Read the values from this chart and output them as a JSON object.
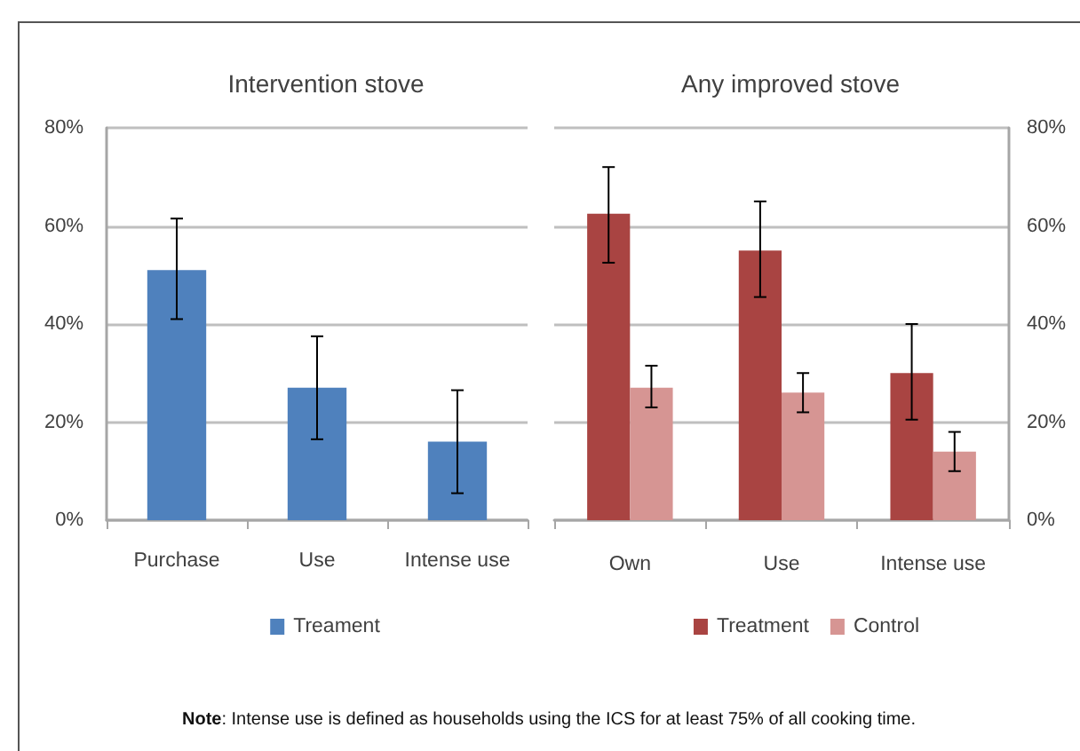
{
  "chart_data": [
    {
      "type": "bar",
      "title": "Intervention stove",
      "categories": [
        "Purchase",
        "Use",
        "Intense use"
      ],
      "series": [
        {
          "name": "Treament",
          "color": "#4f81bd",
          "values": [
            51,
            27,
            16
          ],
          "errors": [
            [
              41,
              61.5
            ],
            [
              16.5,
              37.5
            ],
            [
              5.5,
              26.5
            ]
          ]
        }
      ],
      "ylim": [
        0,
        80
      ],
      "yticks": [
        {
          "value": 0,
          "label": "0%"
        },
        {
          "value": 20,
          "label": "20%"
        },
        {
          "value": 40,
          "label": "40%"
        },
        {
          "value": 60,
          "label": "60%"
        },
        {
          "value": 80,
          "label": "80%"
        }
      ],
      "grid": "y",
      "legend": "bottom"
    },
    {
      "type": "bar",
      "title": "Any improved stove",
      "categories": [
        "Own",
        "Use",
        "Intense use"
      ],
      "series": [
        {
          "name": "Treatment",
          "color": "#a94442",
          "axis": "y2",
          "values": [
            62.5,
            55,
            30
          ],
          "errors": [
            [
              52.5,
              72
            ],
            [
              45.5,
              65
            ],
            [
              20.5,
              40
            ]
          ]
        },
        {
          "name": "Control",
          "color": "#d69593",
          "axis": "y2",
          "values": [
            27,
            26,
            14
          ],
          "errors": [
            [
              23,
              31.5
            ],
            [
              22,
              30
            ],
            [
              10,
              18
            ]
          ]
        }
      ],
      "y2lim": [
        0,
        80
      ],
      "y2ticks": [
        {
          "value": 0,
          "label": "0%"
        },
        {
          "value": 20,
          "label": "20%"
        },
        {
          "value": 40,
          "label": "40%"
        },
        {
          "value": 60,
          "label": "60%"
        },
        {
          "value": 80,
          "label": "80%"
        }
      ],
      "grid": "y",
      "legend": "bottom",
      "annotations": [
        "Note: Intense use is defined as households using the ICS for at least 75% of all cooking time."
      ]
    }
  ]
}
